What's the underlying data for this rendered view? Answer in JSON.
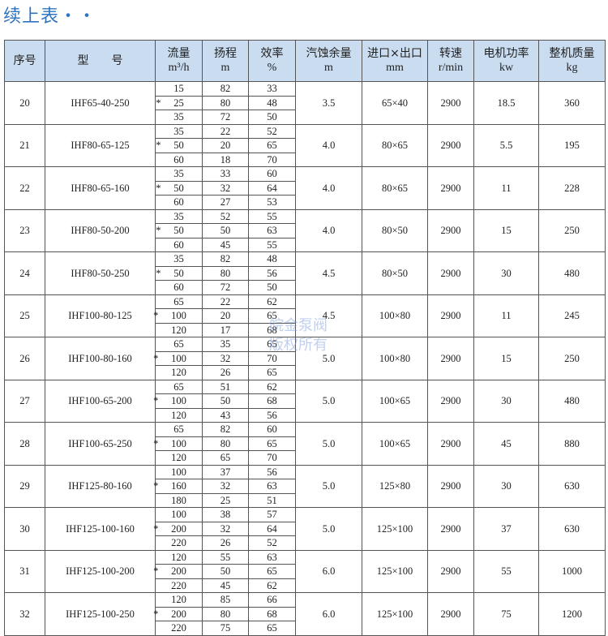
{
  "title": "续上表・・",
  "watermark": [
    "皖金泵阀",
    "版权所有"
  ],
  "headers": [
    {
      "label": "序号",
      "unit": ""
    },
    {
      "label": "型　　号",
      "unit": ""
    },
    {
      "label": "流量",
      "unit": "m³/h"
    },
    {
      "label": "扬程",
      "unit": "m"
    },
    {
      "label": "效率",
      "unit": "%"
    },
    {
      "label": "汽蚀余量",
      "unit": "m"
    },
    {
      "label": "进口×出口",
      "unit": "mm"
    },
    {
      "label": "转速",
      "unit": "r/min"
    },
    {
      "label": "电机功率",
      "unit": "kw"
    },
    {
      "label": "整机质量",
      "unit": "kg"
    }
  ],
  "rows": [
    {
      "no": "20",
      "model": "IHF65-40-250",
      "flow": [
        "15",
        "25",
        "35"
      ],
      "head": [
        "82",
        "80",
        "72"
      ],
      "eff": [
        "33",
        "48",
        "50"
      ],
      "npsh": "3.5",
      "port": "65×40",
      "speed": "2900",
      "power": "18.5",
      "mass": "360"
    },
    {
      "no": "21",
      "model": "IHF80-65-125",
      "flow": [
        "35",
        "50",
        "60"
      ],
      "head": [
        "22",
        "20",
        "18"
      ],
      "eff": [
        "52",
        "65",
        "70"
      ],
      "npsh": "4.0",
      "port": "80×65",
      "speed": "2900",
      "power": "5.5",
      "mass": "195"
    },
    {
      "no": "22",
      "model": "IHF80-65-160",
      "flow": [
        "35",
        "50",
        "60"
      ],
      "head": [
        "33",
        "32",
        "27"
      ],
      "eff": [
        "60",
        "64",
        "53"
      ],
      "npsh": "4.0",
      "port": "80×65",
      "speed": "2900",
      "power": "11",
      "mass": "228"
    },
    {
      "no": "23",
      "model": "IHF80-50-200",
      "flow": [
        "35",
        "50",
        "60"
      ],
      "head": [
        "52",
        "50",
        "45"
      ],
      "eff": [
        "55",
        "63",
        "55"
      ],
      "npsh": "4.0",
      "port": "80×50",
      "speed": "2900",
      "power": "15",
      "mass": "250"
    },
    {
      "no": "24",
      "model": "IHF80-50-250",
      "flow": [
        "35",
        "50",
        "60"
      ],
      "head": [
        "82",
        "80",
        "72"
      ],
      "eff": [
        "48",
        "56",
        "50"
      ],
      "npsh": "4.5",
      "port": "80×50",
      "speed": "2900",
      "power": "30",
      "mass": "480"
    },
    {
      "no": "25",
      "model": "IHF100-80-125",
      "flow": [
        "65",
        "100",
        "120"
      ],
      "head": [
        "22",
        "20",
        "17"
      ],
      "eff": [
        "62",
        "65",
        "68"
      ],
      "npsh": "4.5",
      "port": "100×80",
      "speed": "2900",
      "power": "11",
      "mass": "245"
    },
    {
      "no": "26",
      "model": "IHF100-80-160",
      "flow": [
        "65",
        "100",
        "120"
      ],
      "head": [
        "35",
        "32",
        "26"
      ],
      "eff": [
        "65",
        "70",
        "65"
      ],
      "npsh": "5.0",
      "port": "100×80",
      "speed": "2900",
      "power": "15",
      "mass": "250"
    },
    {
      "no": "27",
      "model": "IHF100-65-200",
      "flow": [
        "65",
        "100",
        "120"
      ],
      "head": [
        "51",
        "50",
        "43"
      ],
      "eff": [
        "62",
        "68",
        "56"
      ],
      "npsh": "5.0",
      "port": "100×65",
      "speed": "2900",
      "power": "30",
      "mass": "480"
    },
    {
      "no": "28",
      "model": "IHF100-65-250",
      "flow": [
        "65",
        "100",
        "120"
      ],
      "head": [
        "82",
        "80",
        "65"
      ],
      "eff": [
        "60",
        "65",
        "70"
      ],
      "npsh": "5.0",
      "port": "100×65",
      "speed": "2900",
      "power": "45",
      "mass": "880"
    },
    {
      "no": "29",
      "model": "IHF125-80-160",
      "flow": [
        "100",
        "160",
        "180"
      ],
      "head": [
        "37",
        "32",
        "25"
      ],
      "eff": [
        "56",
        "63",
        "51"
      ],
      "npsh": "5.0",
      "port": "125×80",
      "speed": "2900",
      "power": "30",
      "mass": "630"
    },
    {
      "no": "30",
      "model": "IHF125-100-160",
      "flow": [
        "100",
        "200",
        "220"
      ],
      "head": [
        "38",
        "32",
        "26"
      ],
      "eff": [
        "57",
        "64",
        "52"
      ],
      "npsh": "5.0",
      "port": "125×100",
      "speed": "2900",
      "power": "37",
      "mass": "630"
    },
    {
      "no": "31",
      "model": "IHF125-100-200",
      "flow": [
        "120",
        "200",
        "220"
      ],
      "head": [
        "55",
        "50",
        "45"
      ],
      "eff": [
        "63",
        "65",
        "62"
      ],
      "npsh": "6.0",
      "port": "125×100",
      "speed": "2900",
      "power": "55",
      "mass": "1000"
    },
    {
      "no": "32",
      "model": "IHF125-100-250",
      "flow": [
        "120",
        "200",
        "220"
      ],
      "head": [
        "85",
        "80",
        "75"
      ],
      "eff": [
        "66",
        "68",
        "65"
      ],
      "npsh": "6.0",
      "port": "125×100",
      "speed": "2900",
      "power": "75",
      "mass": "1200"
    }
  ],
  "rated_marker": "*"
}
